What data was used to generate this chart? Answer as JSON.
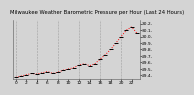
{
  "title": "Milwaukee Weather Barometric Pressure per Hour (Last 24 Hours)",
  "bg_color": "#d4d4d4",
  "plot_bg": "#d4d4d4",
  "grid_color": "#888888",
  "line_color": "#ff0000",
  "tick_color": "#000000",
  "ylim": [
    29.35,
    30.25
  ],
  "hours": [
    0,
    1,
    2,
    3,
    4,
    5,
    6,
    7,
    8,
    9,
    10,
    11,
    12,
    13,
    14,
    15,
    16,
    17,
    18,
    19,
    20,
    21,
    22,
    23
  ],
  "pressure": [
    29.37,
    29.39,
    29.41,
    29.43,
    29.42,
    29.44,
    29.46,
    29.43,
    29.45,
    29.48,
    29.5,
    29.52,
    29.56,
    29.58,
    29.55,
    29.58,
    29.65,
    29.72,
    29.8,
    29.9,
    30.0,
    30.1,
    30.15,
    30.05
  ],
  "grid_x": [
    0,
    4,
    8,
    12,
    16,
    20,
    24
  ],
  "title_fontsize": 3.8,
  "tick_fontsize": 3.2,
  "right_labels": [
    "30.2-",
    "30.1-",
    "30.0-",
    "29.9-",
    "29.8-",
    "29.7-",
    "29.6-",
    "29.5-",
    "29.4-"
  ],
  "right_values": [
    30.2,
    30.1,
    30.0,
    29.9,
    29.8,
    29.7,
    29.6,
    29.5,
    29.4
  ],
  "xtick_positions": [
    0,
    2,
    4,
    6,
    8,
    10,
    12,
    14,
    16,
    18,
    20,
    22
  ],
  "xtick_labels": [
    "0",
    "2",
    "4",
    "6",
    "8",
    "10",
    "12",
    "14",
    "16",
    "18",
    "20",
    "22"
  ]
}
